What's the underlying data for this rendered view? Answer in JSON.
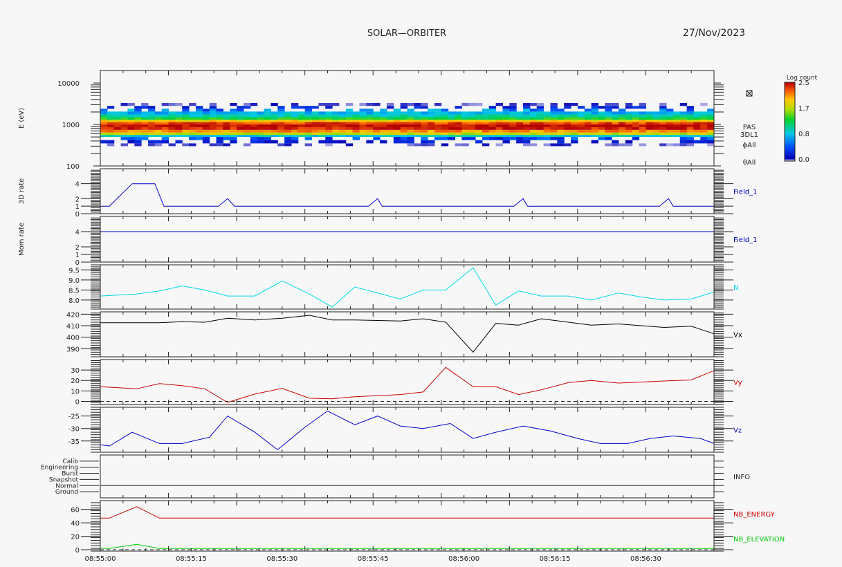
{
  "header": {
    "title": "SOLAR—ORBITER",
    "date": "27/Nov/2023"
  },
  "colorbar": {
    "label": "Log count",
    "ticks": [
      "2.5",
      "1.7",
      "0.8",
      "0.0"
    ]
  },
  "time_axis": {
    "start": "08:55:00",
    "end": "08:56:40",
    "tick_labels": [
      "08:55:00",
      "08:55:15",
      "08:55:30",
      "08:55:45",
      "08:56:00",
      "08:56:15",
      "08:56:30"
    ]
  },
  "chart_data": [
    {
      "type": "heatmap",
      "ylabel": "E (eV)",
      "yscale": "log",
      "ylim": [
        100,
        20000
      ],
      "ytick_labels": [
        "100",
        "1000",
        "10000"
      ],
      "right_labels": [
        "PAS",
        "3DL1",
        "ϕAll",
        "θAll"
      ],
      "colorscale": "log count 0.0–2.5 (white, blue, cyan, green, yellow, orange, red)",
      "bands": [
        {
          "energy_min": 300,
          "energy_max": 350,
          "log_count": 0.05
        },
        {
          "energy_min": 350,
          "energy_max": 420,
          "log_count": 0.2
        },
        {
          "energy_min": 420,
          "energy_max": 500,
          "log_count": 0.4
        },
        {
          "energy_min": 500,
          "energy_max": 560,
          "log_count": 0.9
        },
        {
          "energy_min": 560,
          "energy_max": 640,
          "log_count": 1.7
        },
        {
          "energy_min": 640,
          "energy_max": 740,
          "log_count": 2.1
        },
        {
          "energy_min": 740,
          "energy_max": 860,
          "log_count": 2.4
        },
        {
          "energy_min": 860,
          "energy_max": 1000,
          "log_count": 2.5
        },
        {
          "energy_min": 1000,
          "energy_max": 1150,
          "log_count": 2.3
        },
        {
          "energy_min": 1150,
          "energy_max": 1300,
          "log_count": 1.9
        },
        {
          "energy_min": 1300,
          "energy_max": 1500,
          "log_count": 1.3
        },
        {
          "energy_min": 1500,
          "energy_max": 1750,
          "log_count": 1.0
        },
        {
          "energy_min": 1750,
          "energy_max": 2050,
          "log_count": 0.8
        },
        {
          "energy_min": 2050,
          "energy_max": 2400,
          "log_count": 0.6
        },
        {
          "energy_min": 2400,
          "energy_max": 2800,
          "log_count": 0.25
        },
        {
          "energy_min": 2800,
          "energy_max": 3300,
          "log_count": 0.05
        }
      ]
    },
    {
      "type": "line",
      "ylabel": "3D rate",
      "ylim": [
        0,
        6
      ],
      "ytick_labels": [
        "0",
        "1",
        "2",
        "4"
      ],
      "series": [
        {
          "name": "Field_1",
          "color": "#0000c8",
          "x": [
            0,
            2,
            7,
            12,
            14,
            26,
            28,
            29.5,
            59,
            61,
            62,
            91,
            93,
            94,
            123,
            125,
            126,
            135
          ],
          "values": [
            1,
            1,
            4,
            4,
            1,
            1,
            2,
            1,
            1,
            2,
            1,
            1,
            2,
            1,
            1,
            2,
            1,
            1
          ]
        }
      ]
    },
    {
      "type": "line",
      "ylabel": "Mom rate",
      "ylim": [
        0,
        6
      ],
      "ytick_labels": [
        "0",
        "1",
        "2",
        "4"
      ],
      "series": [
        {
          "name": "Field_1",
          "color": "#0000c8",
          "x": [
            0,
            135
          ],
          "values": [
            4,
            4
          ]
        }
      ]
    },
    {
      "type": "line",
      "ylim": [
        7.55,
        9.75
      ],
      "ytick_labels": [
        "8.0",
        "8.5",
        "9.0",
        "9.5"
      ],
      "series": [
        {
          "name": "N",
          "color": "#00d8e8",
          "x": [
            0,
            8,
            13,
            18,
            23,
            28,
            34,
            40,
            46,
            51,
            56,
            66,
            71,
            76,
            82,
            87,
            92,
            97,
            103,
            108,
            114,
            119,
            124,
            130,
            135
          ],
          "values": [
            8.2,
            8.3,
            8.45,
            8.7,
            8.5,
            8.2,
            8.2,
            8.95,
            8.3,
            7.65,
            8.65,
            8.05,
            8.5,
            8.5,
            9.6,
            7.75,
            8.45,
            8.2,
            8.2,
            8.0,
            8.35,
            8.15,
            8.0,
            8.05,
            8.4
          ]
        }
      ]
    },
    {
      "type": "line",
      "ylim": [
        383,
        422
      ],
      "ytick_labels": [
        "390",
        "400",
        "410",
        "420"
      ],
      "series": [
        {
          "name": "Vx",
          "color": "#000000",
          "x": [
            0,
            8,
            13,
            18,
            23,
            28,
            34,
            40,
            46,
            51,
            56,
            66,
            71,
            76,
            82,
            87,
            92,
            97,
            103,
            108,
            114,
            119,
            124,
            130,
            135
          ],
          "values": [
            412.5,
            412.5,
            412.5,
            413.5,
            413,
            416.5,
            415,
            416.5,
            419,
            415,
            415,
            414,
            416,
            413,
            387,
            412,
            410.5,
            416,
            413,
            410.5,
            411.5,
            410,
            408.5,
            409.5,
            403
          ]
        }
      ]
    },
    {
      "type": "line",
      "ylim": [
        -3,
        40
      ],
      "ytick_labels": [
        "0",
        "10",
        "20",
        "30"
      ],
      "series": [
        {
          "name": "Vy",
          "color": "#c80000",
          "x": [
            0,
            8,
            13,
            18,
            23,
            28,
            34,
            40,
            46,
            51,
            56,
            66,
            71,
            76,
            82,
            87,
            92,
            97,
            103,
            108,
            114,
            119,
            124,
            130,
            135
          ],
          "values": [
            14,
            12,
            17,
            15,
            12,
            -1,
            7,
            12.5,
            3,
            2.5,
            4.5,
            6.5,
            9,
            32.5,
            14,
            14,
            6.5,
            11,
            18,
            20,
            17.5,
            18.5,
            19.5,
            20.5,
            29.5
          ]
        }
      ]
    },
    {
      "type": "line",
      "ylim": [
        -39.5,
        -21.5
      ],
      "ytick_labels": [
        "-25",
        "-30",
        "-35"
      ],
      "series": [
        {
          "name": "Vz",
          "color": "#0000c8",
          "x": [
            0,
            2,
            7,
            13,
            18,
            24,
            28,
            34,
            39,
            45,
            50,
            56,
            61,
            66,
            71,
            77,
            82,
            87,
            93,
            99,
            105,
            110,
            116,
            121,
            126,
            132,
            135
          ],
          "values": [
            -36.5,
            -37,
            -31.5,
            -36,
            -36,
            -33.5,
            -25,
            -31.5,
            -38.5,
            -29.5,
            -23,
            -28.5,
            -25,
            -29,
            -30,
            -28,
            -34,
            -31.5,
            -29,
            -31,
            -34,
            -36,
            -36,
            -34,
            -33,
            -34,
            -36
          ]
        }
      ]
    },
    {
      "type": "table",
      "name": "INFO",
      "rows": [
        "Calib",
        "Engineering",
        "Burst",
        "Snapshot",
        "Normal",
        "Ground"
      ],
      "flags": []
    },
    {
      "type": "line",
      "ylim": [
        -2,
        73
      ],
      "ytick_labels": [
        "0",
        "20",
        "40",
        "60"
      ],
      "series": [
        {
          "name": "NB_ENERGY",
          "color": "#c80000",
          "x": [
            0,
            2,
            8,
            13,
            135
          ],
          "values": [
            47,
            47,
            64,
            47,
            47
          ]
        },
        {
          "name": "NB_ELEVATION",
          "color": "#00c800",
          "x": [
            0,
            2,
            8,
            13,
            135
          ],
          "values": [
            2,
            2,
            8,
            2,
            2
          ]
        }
      ]
    }
  ]
}
